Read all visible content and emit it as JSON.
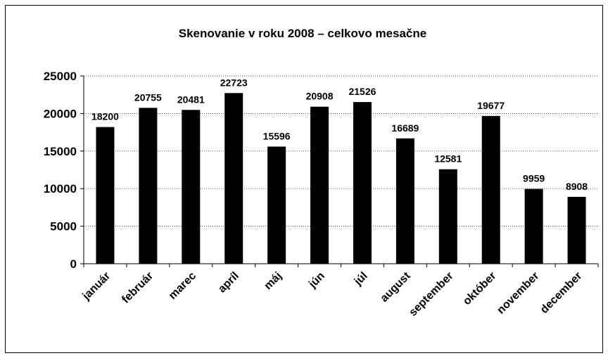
{
  "chart_data": {
    "type": "bar",
    "title": "Skenovanie v roku 2008 – celkovo mesačne",
    "categories": [
      "január",
      "február",
      "marec",
      "apríl",
      "máj",
      "jún",
      "júl",
      "august",
      "september",
      "október",
      "november",
      "december"
    ],
    "values": [
      18200,
      20755,
      20481,
      22723,
      15596,
      20908,
      21526,
      16689,
      12581,
      19677,
      9959,
      8908
    ],
    "color": "#000000",
    "ylim": [
      0,
      25000
    ],
    "yticks": [
      0,
      5000,
      10000,
      15000,
      20000,
      25000
    ],
    "grid": true
  }
}
